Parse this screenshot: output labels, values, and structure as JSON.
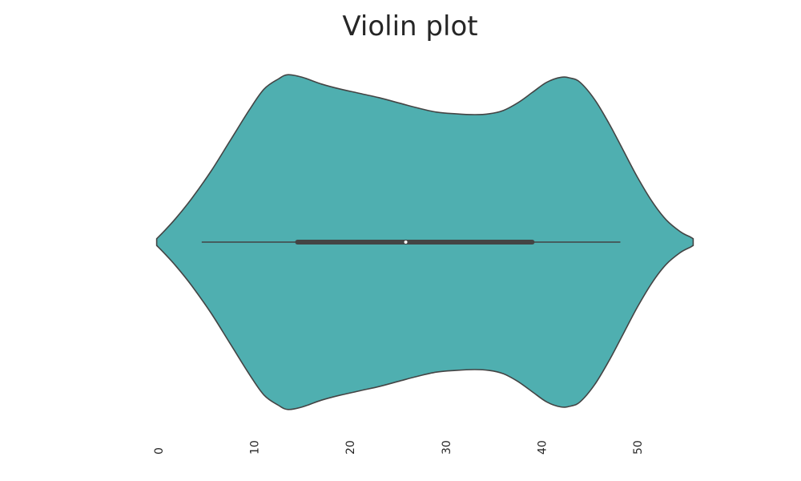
{
  "chart_data": {
    "type": "violin",
    "title": "Violin plot",
    "xlabel": "",
    "ylabel": "",
    "orientation": "horizontal",
    "xlim": [
      -3.5,
      57.5
    ],
    "x_ticks": [
      0,
      10,
      20,
      30,
      40,
      50
    ],
    "x_tick_labels": [
      "0",
      "10",
      "20",
      "30",
      "40",
      "50"
    ],
    "tick_label_rotation": -90,
    "grid": false,
    "fill_color": "#4fafb0",
    "edge_color": "#444444",
    "summary": {
      "min": 4.5,
      "q1": 14.5,
      "median": 25.8,
      "q3": 39.0,
      "max": 48.2
    },
    "density_profile": {
      "x": [
        -0.2,
        0.5,
        1.8,
        3.5,
        5.5,
        7.5,
        9.5,
        11.0,
        12.5,
        13.5,
        15.0,
        17.0,
        19.0,
        21.0,
        23.0,
        25.0,
        27.0,
        29.0,
        31.0,
        33.0,
        34.5,
        36.0,
        37.5,
        39.0,
        40.5,
        42.0,
        43.0,
        44.0,
        45.5,
        47.0,
        48.5,
        50.0,
        51.5,
        53.0,
        54.5,
        55.5,
        55.8
      ],
      "half_width": [
        0.02,
        0.06,
        0.14,
        0.26,
        0.42,
        0.6,
        0.78,
        0.9,
        0.96,
        0.985,
        0.97,
        0.93,
        0.9,
        0.875,
        0.85,
        0.82,
        0.79,
        0.765,
        0.755,
        0.75,
        0.755,
        0.775,
        0.82,
        0.88,
        0.94,
        0.97,
        0.965,
        0.94,
        0.84,
        0.7,
        0.54,
        0.38,
        0.24,
        0.13,
        0.06,
        0.03,
        0.02
      ]
    }
  }
}
